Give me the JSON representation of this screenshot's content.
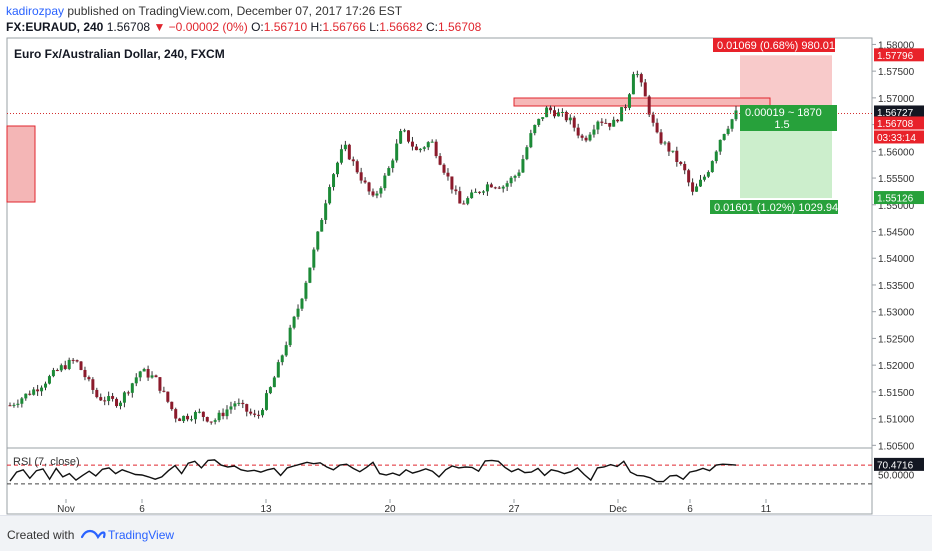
{
  "header": {
    "author": "kadirozpay",
    "published": "published on TradingView.com, December 07, 2017 17:26 EST",
    "symbol": "FX:EURAUD, 240",
    "last": "1.56708",
    "change": "−0.00002 (0%)",
    "ohlc": {
      "o_label": "O:",
      "o": "1.56710",
      "h_label": "H:",
      "h": "1.56766",
      "l_label": "L:",
      "l": "1.56682",
      "c_label": "C:",
      "c": "1.56708"
    }
  },
  "footer": {
    "created_with": "Created with",
    "brand": "TradingView"
  },
  "colors": {
    "up": "#26a69a",
    "up_candle": "#1c8a37",
    "down": "#8b1a2b",
    "loss_zone": "#f7c1c1",
    "profit_zone": "#c6ecc6",
    "red_label": "#e8222a",
    "green_label": "#27a13b",
    "rsi_line": "#111111",
    "rsi_dash": "#e0262e"
  },
  "chart_data": {
    "type": "candlestick",
    "title": "Euro Fx/Australian Dollar, 240, FXCM",
    "ylim": [
      1.5045,
      1.5812
    ],
    "y_ticks": [
      "1.58000",
      "1.57500",
      "1.57000",
      "1.56500",
      "1.56000",
      "1.55500",
      "1.55000",
      "1.54500",
      "1.54000",
      "1.53500",
      "1.53000",
      "1.52500",
      "1.52000",
      "1.51500",
      "1.51000",
      "1.50500"
    ],
    "x_ticks": [
      "Nov",
      "6",
      "13",
      "20",
      "27",
      "Dec",
      "6",
      "11"
    ],
    "series": [
      {
        "name": "EURAUD",
        "anchors": [
          [
            0,
            1.5125
          ],
          [
            0.04,
            1.516
          ],
          [
            0.07,
            1.5195
          ],
          [
            0.09,
            1.521
          ],
          [
            0.12,
            1.514
          ],
          [
            0.15,
            1.513
          ],
          [
            0.18,
            1.519
          ],
          [
            0.2,
            1.5175
          ],
          [
            0.23,
            1.51
          ],
          [
            0.26,
            1.511
          ],
          [
            0.28,
            1.5095
          ],
          [
            0.31,
            1.513
          ],
          [
            0.34,
            1.51
          ],
          [
            0.36,
            1.516
          ],
          [
            0.38,
            1.524
          ],
          [
            0.4,
            1.532
          ],
          [
            0.42,
            1.542
          ],
          [
            0.44,
            1.554
          ],
          [
            0.46,
            1.561
          ],
          [
            0.48,
            1.556
          ],
          [
            0.5,
            1.551
          ],
          [
            0.52,
            1.556
          ],
          [
            0.54,
            1.564
          ],
          [
            0.56,
            1.56
          ],
          [
            0.58,
            1.562
          ],
          [
            0.6,
            1.556
          ],
          [
            0.62,
            1.55
          ],
          [
            0.64,
            1.552
          ],
          [
            0.66,
            1.554
          ],
          [
            0.68,
            1.5535
          ],
          [
            0.7,
            1.556
          ],
          [
            0.72,
            1.564
          ],
          [
            0.74,
            1.568
          ],
          [
            0.77,
            1.566
          ],
          [
            0.79,
            1.562
          ],
          [
            0.81,
            1.566
          ],
          [
            0.83,
            1.565
          ],
          [
            0.85,
            1.569
          ],
          [
            0.86,
            1.576
          ],
          [
            0.875,
            1.57
          ],
          [
            0.89,
            1.563
          ],
          [
            0.91,
            1.56
          ],
          [
            0.93,
            1.556
          ],
          [
            0.94,
            1.552
          ],
          [
            0.96,
            1.556
          ],
          [
            0.98,
            1.563
          ],
          [
            1.0,
            1.5671
          ]
        ]
      }
    ],
    "position": {
      "entry": "1.56727",
      "target": "1.55126",
      "stop": "1.57796",
      "stop_label": "0.01069 (0.68%) 980.01",
      "target_label": "0.01601 (1.02%) 1029.94",
      "current_label": "0.00019 ~ 1870",
      "ratio_label": "1.5"
    },
    "price_tags": {
      "current": "1.56708",
      "countdown": "03:33:14"
    },
    "rsi": {
      "label": "RSI (7, close)",
      "value": "70.4716",
      "level_label": "50.0000",
      "ylim": [
        0,
        100
      ],
      "upper": 70,
      "lower": 30,
      "values": [
        36,
        55,
        60,
        42,
        58,
        62,
        40,
        63,
        45,
        52,
        38,
        48,
        57,
        47,
        61,
        64,
        52,
        60,
        55,
        50,
        49,
        45,
        40,
        45,
        58,
        69,
        52,
        74,
        78,
        64,
        80,
        81,
        70,
        66,
        68,
        60,
        57,
        59,
        55,
        60,
        63,
        48,
        64,
        68,
        72,
        76,
        73,
        75,
        66,
        60,
        70,
        72,
        63,
        56,
        65,
        76,
        52,
        49,
        53,
        48,
        60,
        53,
        57,
        62,
        57,
        45,
        60,
        68,
        64,
        66,
        65,
        57,
        79,
        80,
        78,
        65,
        56,
        62,
        54,
        55,
        63,
        48,
        60,
        57,
        52,
        56,
        64,
        50,
        38,
        64,
        66,
        71,
        67,
        78,
        55,
        48,
        47,
        43,
        35,
        35,
        47,
        48,
        40,
        55,
        58,
        63,
        58,
        70,
        72,
        71,
        70
      ]
    }
  }
}
